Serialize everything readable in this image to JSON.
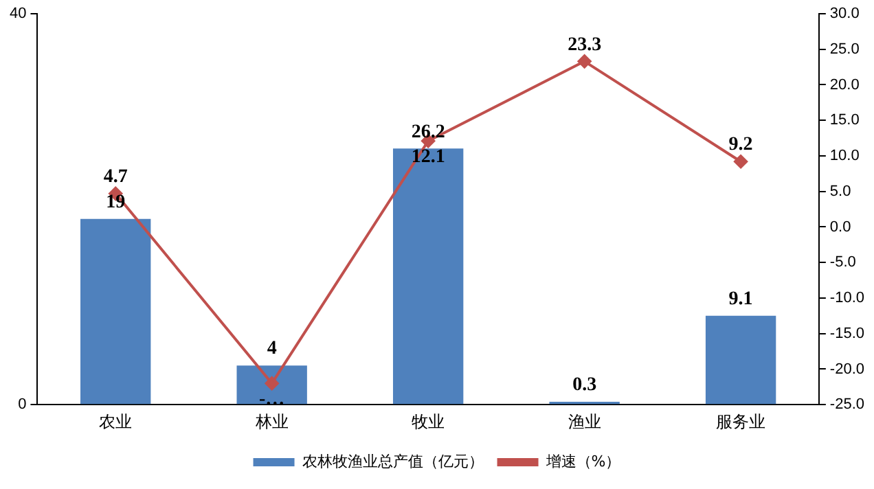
{
  "chart_data": {
    "type": "bar",
    "categories": [
      "农业",
      "林业",
      "牧业",
      "渔业",
      "服务业"
    ],
    "series": [
      {
        "name": "农林牧渔业总产值（亿元）",
        "color": "#4f81bd",
        "values": [
          19,
          4,
          26.2,
          0.3,
          9.1
        ],
        "value_labels": [
          "19",
          "4",
          "26.2",
          "0.3",
          "9.1"
        ]
      },
      {
        "name": "增速（%）",
        "type": "line",
        "axis": "y2",
        "color": "#c0504d",
        "marker": "diamond",
        "values": [
          4.7,
          -22,
          12.1,
          23.3,
          9.2
        ],
        "value_labels": [
          "4.7",
          "-…",
          "12.1",
          "23.3",
          "9.2"
        ]
      }
    ],
    "ylim": [
      0,
      40
    ],
    "yticks": [
      0,
      40
    ],
    "y2lim": [
      -25,
      30
    ],
    "y2ticks": [
      {
        "value": -25,
        "label": "-25.0"
      },
      {
        "value": -20,
        "label": "-20.0"
      },
      {
        "value": -15,
        "label": "-15.0"
      },
      {
        "value": -10,
        "label": "-10.0"
      },
      {
        "value": -5,
        "label": "-5.0"
      },
      {
        "value": 0,
        "label": "0.0"
      },
      {
        "value": 5,
        "label": "5.0"
      },
      {
        "value": 10,
        "label": "10.0"
      },
      {
        "value": 15,
        "label": "15.0"
      },
      {
        "value": 20,
        "label": "20.0"
      },
      {
        "value": 25,
        "label": "25.0"
      },
      {
        "value": 30,
        "label": "30.0"
      }
    ],
    "grid": false,
    "legend": "bottom"
  }
}
